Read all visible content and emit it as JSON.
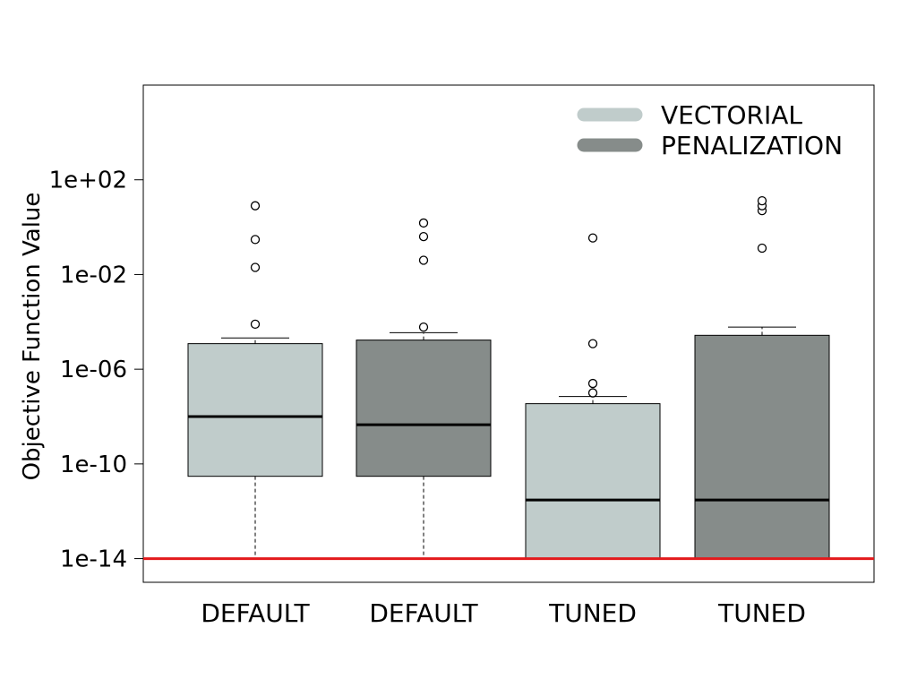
{
  "chart_data": {
    "type": "box",
    "title": "",
    "xlabel": "",
    "ylabel": "Objective Function Value",
    "y_scale": "log",
    "ylim": [
      1e-15,
      1000000.0
    ],
    "y_ticks": [
      {
        "value": 100.0,
        "label": "1e+02"
      },
      {
        "value": 0.01,
        "label": "1e-02"
      },
      {
        "value": 1e-06,
        "label": "1e-06"
      },
      {
        "value": 1e-10,
        "label": "1e-10"
      },
      {
        "value": 1e-14,
        "label": "1e-14"
      }
    ],
    "categories": [
      "DEFAULT",
      "DEFAULT",
      "TUNED",
      "TUNED"
    ],
    "legend": {
      "position": "top-right",
      "entries": [
        {
          "name": "VECTORIAL",
          "color": "#c0cccb"
        },
        {
          "name": "PENALIZATION",
          "color": "#868c8a"
        }
      ]
    },
    "reference_line": {
      "value": 1e-14,
      "color": "#e31a1c"
    },
    "boxes": [
      {
        "category": "DEFAULT",
        "series": "VECTORIAL",
        "color": "#c0cccb",
        "whisker_low": 1e-14,
        "q1": 3e-11,
        "median": 1e-08,
        "q3": 1.2e-05,
        "whisker_high": 2.1e-05,
        "outliers": [
          8e-05,
          0.02,
          0.3,
          8
        ]
      },
      {
        "category": "DEFAULT",
        "series": "PENALIZATION",
        "color": "#868c8a",
        "whisker_low": 1e-14,
        "q1": 3e-11,
        "median": 4.5e-09,
        "q3": 1.7e-05,
        "whisker_high": 3.5e-05,
        "outliers": [
          6e-05,
          0.04,
          0.4,
          1.5
        ]
      },
      {
        "category": "TUNED",
        "series": "VECTORIAL",
        "color": "#c0cccb",
        "whisker_low": 1e-14,
        "q1": 1e-14,
        "median": 3e-12,
        "q3": 3.5e-08,
        "whisker_high": 7e-08,
        "outliers": [
          1e-07,
          2.5e-07,
          1.2e-05,
          0.35
        ]
      },
      {
        "category": "TUNED",
        "series": "PENALIZATION",
        "color": "#868c8a",
        "whisker_low": 1e-14,
        "q1": 1e-14,
        "median": 3e-12,
        "q3": 2.7e-05,
        "whisker_high": 6e-05,
        "outliers": [
          0.13,
          5,
          8,
          13
        ]
      }
    ]
  }
}
